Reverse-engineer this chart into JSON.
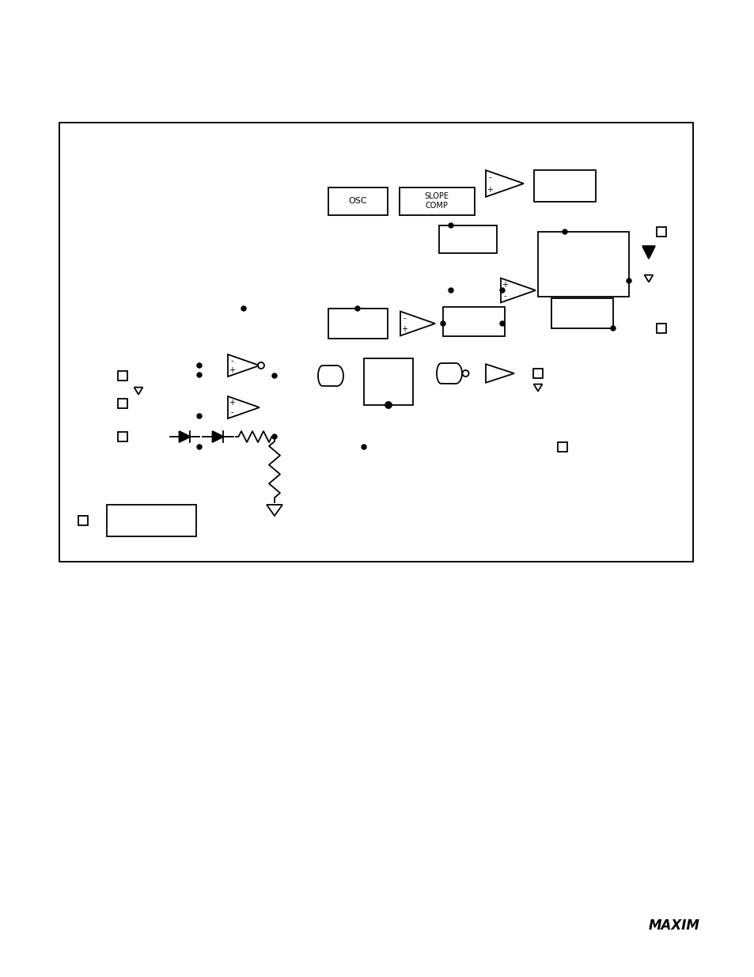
{
  "fig_width": 9.54,
  "fig_height": 12.35,
  "dpi": 100,
  "bg_color": "#ffffff",
  "line_color": "#000000",
  "border": [
    75,
    525,
    801,
    555
  ],
  "lw": 1.3
}
